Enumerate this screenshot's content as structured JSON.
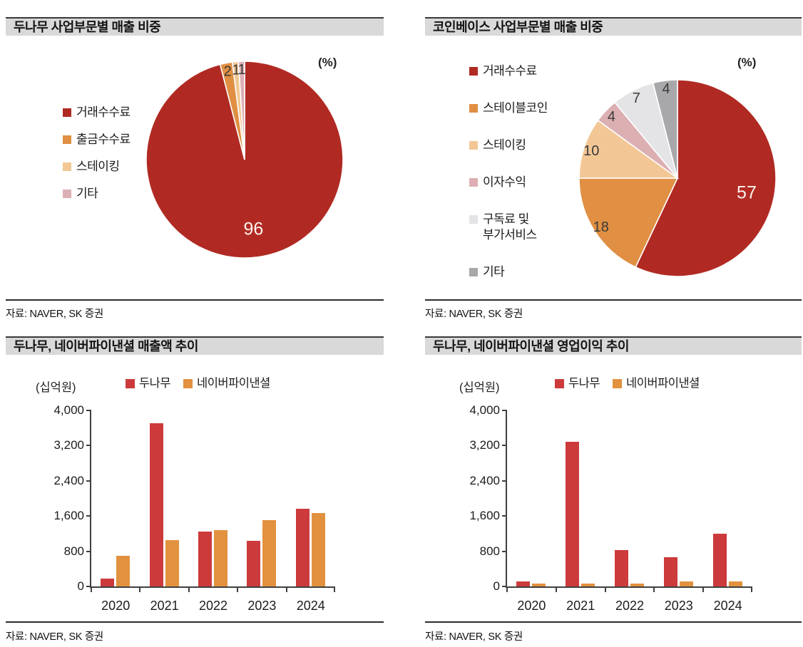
{
  "chart_data": [
    {
      "type": "pie",
      "title": "두나무 사업부문별 매출 비중",
      "unit_label": "(%)",
      "legend_position": "left",
      "labels": [
        "거래수수료",
        "출금수수료",
        "스테이킹",
        "기타"
      ],
      "values": [
        96,
        2,
        1,
        1
      ],
      "colors": [
        "#b02a23",
        "#e08f43",
        "#f2c795",
        "#dcafb3"
      ],
      "start_angle": "12-oclock-clockwise",
      "source": "자료: NAVER, SK 증권"
    },
    {
      "type": "pie",
      "title": "코인베이스 사업부문별 매출 비중",
      "unit_label": "(%)",
      "legend_position": "left",
      "labels": [
        "거래수수료",
        "스테이블코인",
        "스테이킹",
        "이자수익",
        "구독료 및 부가서비스",
        "기타"
      ],
      "values": [
        57,
        18,
        10,
        4,
        7,
        4
      ],
      "colors": [
        "#b02a23",
        "#e08f43",
        "#f2c795",
        "#dcafb3",
        "#e4e4e6",
        "#a8a8aa"
      ],
      "start_angle": "12-oclock-clockwise",
      "source": "자료: NAVER, SK 증권"
    },
    {
      "type": "bar",
      "title": "두나무, 네이버파이낸셜 매출액 추이",
      "unit_label": "(십억원)",
      "categories": [
        "2020",
        "2021",
        "2022",
        "2023",
        "2024"
      ],
      "series": [
        {
          "name": "두나무",
          "color": "#cc3a3c",
          "values": [
            180,
            3710,
            1250,
            1040,
            1760
          ]
        },
        {
          "name": "네이버파이낸셜",
          "color": "#e2913f",
          "values": [
            700,
            1050,
            1280,
            1510,
            1670
          ]
        }
      ],
      "ylim": [
        0,
        4000
      ],
      "yticks": [
        0,
        800,
        1600,
        2400,
        3200,
        4000
      ],
      "grid": false,
      "legend_position": "top",
      "source": "자료: NAVER, SK 증권"
    },
    {
      "type": "bar",
      "title": "두나무, 네이버파이낸셜 영업이익 추이",
      "unit_label": "(십억원)",
      "categories": [
        "2020",
        "2021",
        "2022",
        "2023",
        "2024"
      ],
      "series": [
        {
          "name": "두나무",
          "color": "#cc3a3c",
          "values": [
            120,
            3280,
            830,
            660,
            1200
          ]
        },
        {
          "name": "네이버파이낸셜",
          "color": "#e2913f",
          "values": [
            60,
            60,
            60,
            110,
            110
          ]
        }
      ],
      "ylim": [
        0,
        4000
      ],
      "yticks": [
        0,
        800,
        1600,
        2400,
        3200,
        4000
      ],
      "grid": false,
      "legend_position": "top",
      "source": "자료: NAVER, SK 증권"
    }
  ]
}
